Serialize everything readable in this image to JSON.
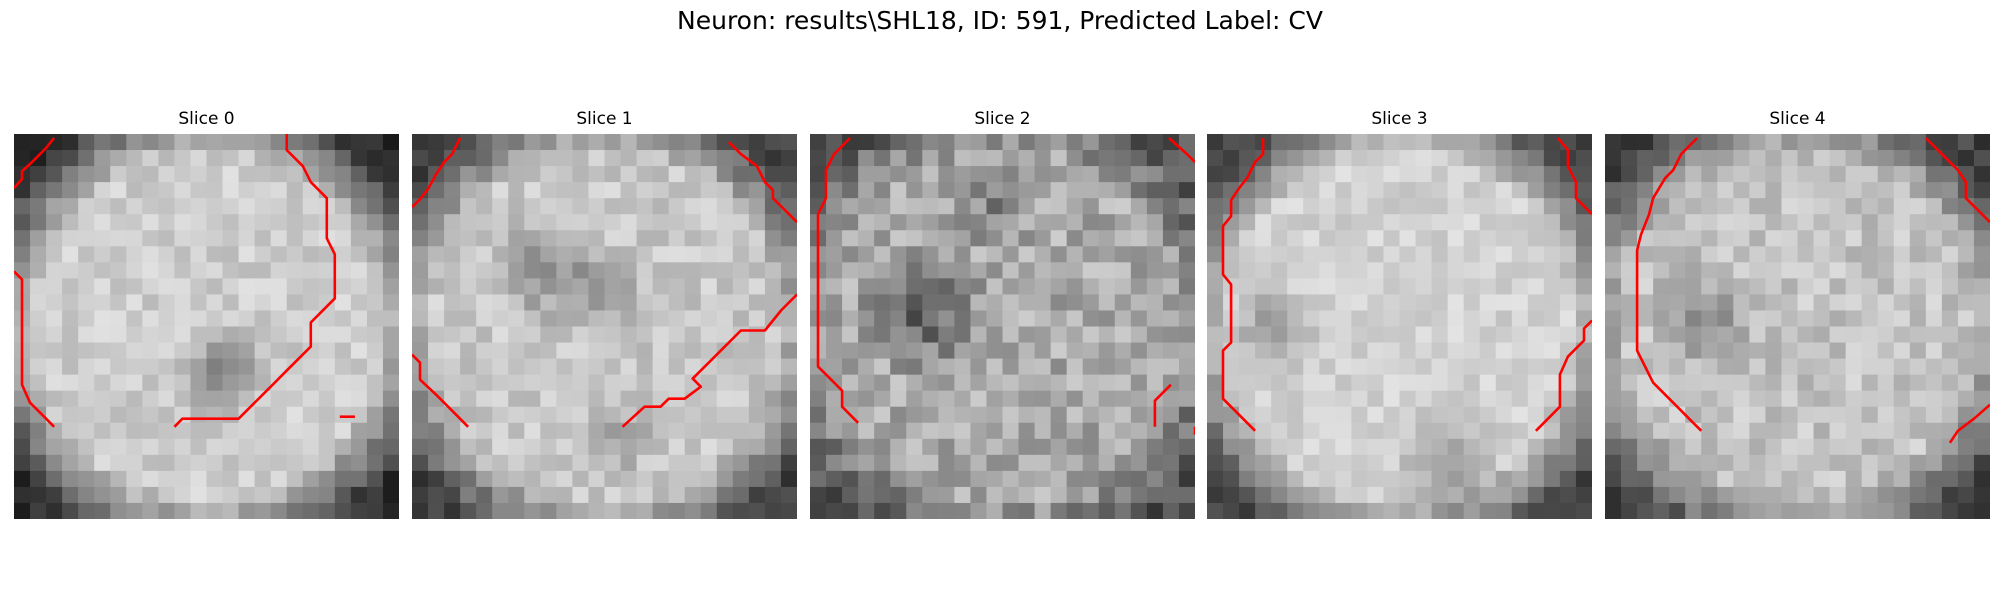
{
  "figure": {
    "title": "Neuron: results\\SHL18, ID: 591, Predicted Label: CV"
  },
  "panels": [
    {
      "title": "Slice 0"
    },
    {
      "title": "Slice 1"
    },
    {
      "title": "Slice 2"
    },
    {
      "title": "Slice 3"
    },
    {
      "title": "Slice 4"
    }
  ],
  "colors": {
    "contour": "#ff0000",
    "cmap": "gray"
  }
}
